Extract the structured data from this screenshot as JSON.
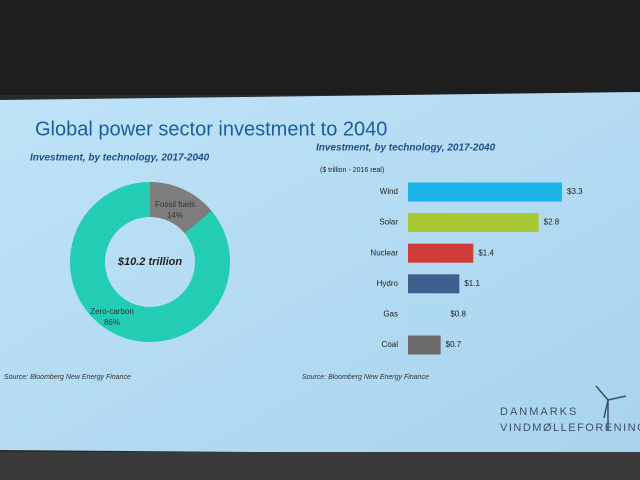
{
  "slide": {
    "title": "Global power sector investment to 2040",
    "logo": [
      "DANMARKS",
      "VINDMØLLEFORENING"
    ]
  },
  "chart_data": [
    {
      "type": "donut",
      "title": "Investment, by technology, 2017-2040",
      "categories": [
        "Fossil fuels",
        "Zero-carbon"
      ],
      "values": [
        14,
        86
      ],
      "value_labels": [
        "14%",
        "86%"
      ],
      "colors": [
        "#7d7d7d",
        "#22cdb4"
      ],
      "annotations": [
        "$10.2 trillion"
      ],
      "source": "Source: Bloomberg New Energy Finance"
    },
    {
      "type": "hbar",
      "title": "Investment, by technology, 2017-2040",
      "note": "($ trillion - 2016 real)",
      "categories": [
        "Wind",
        "Solar",
        "Nuclear",
        "Hydro",
        "Gas",
        "Coal"
      ],
      "values": [
        3.3,
        2.8,
        1.4,
        1.1,
        0.8,
        0.7
      ],
      "value_labels": [
        "$3.3",
        "$2.8",
        "$1.4",
        "$1.1",
        "$0.8",
        "$0.7"
      ],
      "colors": [
        "#1db4ea",
        "#a6c934",
        "#d03c3a",
        "#3f5f8f",
        "#abd9ef",
        "#6c6a68"
      ],
      "source": "Source: Bloomberg New Energy Finance"
    }
  ]
}
